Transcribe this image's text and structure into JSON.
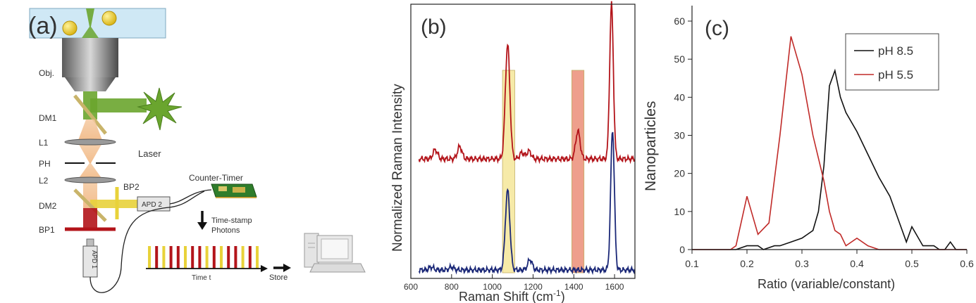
{
  "panel_a": {
    "label": "(a)",
    "obj": "Obj.",
    "dm1": "DM1",
    "laser": "Laser",
    "l1": "L1",
    "ph": "PH",
    "l2": "L2",
    "bp2": "BP2",
    "dm2": "DM2",
    "bp1": "BP1",
    "apd2": "APD 2",
    "apd1": "APD 1",
    "counter_timer": "Counter-Timer",
    "timestamp_line1": "Time-stamp",
    "timestamp_line2": "Photons",
    "time_t": "Time t",
    "store": "Store",
    "colors": {
      "laser_green": "#6aa52e",
      "raman_red": "#b3141a",
      "bp2_yellow": "#e8d23a",
      "channel_blue": "#cfe8f5",
      "particle": "#e8c521"
    },
    "photon_sequence": [
      "y",
      "r",
      "y",
      "r",
      "r",
      "y",
      "r",
      "r",
      "y",
      "r",
      "y",
      "r",
      "r",
      "y",
      "r",
      "y"
    ]
  },
  "chart_b": {
    "label": "(b)",
    "type": "line",
    "xlabel": "Raman Shift (cm-1)",
    "xlabel_main": "Raman Shift (cm",
    "xlabel_sup": "-1",
    "xlabel_end": ")",
    "ylabel": "Normalized Raman Intensity",
    "xlim": [
      600,
      1700
    ],
    "xticks": [
      "600",
      "800",
      "1000",
      "1200",
      "1400",
      "1600"
    ],
    "highlight_bands": [
      {
        "from": 1050,
        "to": 1110,
        "color": "#f5e79a"
      },
      {
        "from": 1390,
        "to": 1450,
        "color": "#ec8f78"
      }
    ],
    "series": [
      {
        "color": "#b3141a",
        "peaks": [
          [
            720,
            0.06
          ],
          [
            840,
            0.08
          ],
          [
            1075,
            0.74
          ],
          [
            1145,
            0.04
          ],
          [
            1180,
            0.05
          ],
          [
            1420,
            0.18
          ],
          [
            1585,
            1.0
          ]
        ]
      },
      {
        "color": "#1a2777",
        "peaks": [
          [
            700,
            0.02
          ],
          [
            800,
            0.02
          ],
          [
            1075,
            0.54
          ],
          [
            1185,
            0.07
          ],
          [
            1590,
            0.95
          ]
        ]
      }
    ]
  },
  "chart_c": {
    "label": "(c)",
    "type": "line",
    "xlabel": "Ratio (variable/constant)",
    "ylabel": "Nanoparticles",
    "xlim": [
      0.1,
      0.6
    ],
    "ylim": [
      0,
      60
    ],
    "xticks": [
      "0.1",
      "0.2",
      "0.3",
      "0.4",
      "0.5",
      "0.6"
    ],
    "yticks": [
      "0",
      "10",
      "20",
      "30",
      "40",
      "50",
      "60"
    ],
    "legend_position": "top-right",
    "series": [
      {
        "name": "pH 8.5",
        "color": "#111111",
        "x": [
          0.1,
          0.18,
          0.2,
          0.22,
          0.23,
          0.25,
          0.26,
          0.28,
          0.3,
          0.32,
          0.33,
          0.34,
          0.35,
          0.36,
          0.37,
          0.38,
          0.4,
          0.42,
          0.44,
          0.46,
          0.48,
          0.49,
          0.5,
          0.52,
          0.54,
          0.55,
          0.56,
          0.57,
          0.58,
          0.6
        ],
        "y": [
          0,
          0,
          1,
          1,
          0,
          1,
          1,
          2,
          3,
          5,
          10,
          22,
          43,
          47,
          40,
          36,
          31,
          25,
          19,
          14,
          6,
          2,
          6,
          1,
          1,
          0,
          0,
          2,
          0,
          0
        ]
      },
      {
        "name": "pH 5.5",
        "color": "#c02a28",
        "x": [
          0.1,
          0.17,
          0.18,
          0.2,
          0.22,
          0.24,
          0.26,
          0.28,
          0.3,
          0.32,
          0.34,
          0.35,
          0.36,
          0.37,
          0.38,
          0.4,
          0.42,
          0.44,
          0.46,
          0.5,
          0.6
        ],
        "y": [
          0,
          0,
          1,
          14,
          4,
          7,
          30,
          56,
          46,
          30,
          18,
          10,
          5,
          4,
          1,
          3,
          1,
          0,
          0,
          0,
          0
        ]
      }
    ]
  }
}
